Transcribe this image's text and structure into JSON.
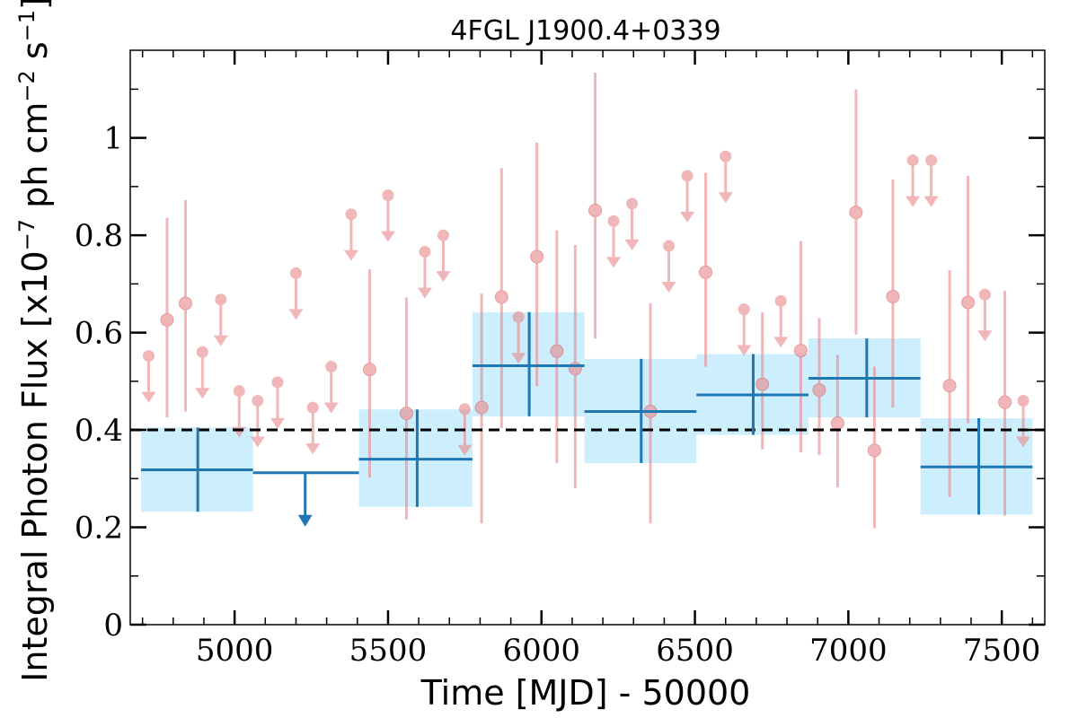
{
  "chart_data": {
    "type": "scatter",
    "title": "4FGL J1900.4+0339",
    "xlabel": "Time [MJD] - 50000",
    "ylabel_prefix": "Integral Photon Flux [x10",
    "ylabel_exp1": "−7",
    "ylabel_mid": " ph cm",
    "ylabel_exp2": "−2",
    "ylabel_mid2": " s",
    "ylabel_exp3": "−1",
    "ylabel_suffix": "]",
    "xlim": [
      4660,
      7640
    ],
    "ylim": [
      0,
      1.18
    ],
    "x_ticks": [
      {
        "value": 5000,
        "label": "5000"
      },
      {
        "value": 5500,
        "label": "5500"
      },
      {
        "value": 6000,
        "label": "6000"
      },
      {
        "value": 6500,
        "label": "6500"
      },
      {
        "value": 7000,
        "label": "7000"
      },
      {
        "value": 7500,
        "label": "7500"
      }
    ],
    "y_ticks": [
      {
        "value": 0,
        "label": "0"
      },
      {
        "value": 0.2,
        "label": "0.2"
      },
      {
        "value": 0.4,
        "label": "0.4"
      },
      {
        "value": 0.6,
        "label": "0.6"
      },
      {
        "value": 0.8,
        "label": "0.8"
      },
      {
        "value": 1.0,
        "label": "1"
      }
    ],
    "mean_flux": 0.4,
    "colors": {
      "short_bins": "#e8868a",
      "long_bins": "#1f77b4",
      "long_band": "#cdeefc",
      "mean_line": "#000000"
    },
    "long_bins": [
      {
        "x": 4880,
        "x_lo": 4695,
        "x_hi": 5060,
        "y": 0.318,
        "y_lo": 0.232,
        "y_hi": 0.405,
        "ul": false
      },
      {
        "x": 5230,
        "x_lo": 5060,
        "x_hi": 5405,
        "y": 0.312,
        "ul": true
      },
      {
        "x": 5595,
        "x_lo": 5405,
        "x_hi": 5775,
        "y": 0.34,
        "y_lo": 0.242,
        "y_hi": 0.442,
        "ul": false
      },
      {
        "x": 5960,
        "x_lo": 5775,
        "x_hi": 6140,
        "y": 0.532,
        "y_lo": 0.428,
        "y_hi": 0.642,
        "ul": false
      },
      {
        "x": 6325,
        "x_lo": 6140,
        "x_hi": 6505,
        "y": 0.438,
        "y_lo": 0.332,
        "y_hi": 0.546,
        "ul": false
      },
      {
        "x": 6690,
        "x_lo": 6505,
        "x_hi": 6870,
        "y": 0.472,
        "y_lo": 0.39,
        "y_hi": 0.556,
        "ul": false
      },
      {
        "x": 7060,
        "x_lo": 6870,
        "x_hi": 7235,
        "y": 0.506,
        "y_lo": 0.426,
        "y_hi": 0.588,
        "ul": false
      },
      {
        "x": 7425,
        "x_lo": 7235,
        "x_hi": 7600,
        "y": 0.324,
        "y_lo": 0.226,
        "y_hi": 0.424,
        "ul": false
      }
    ],
    "short_bins": [
      {
        "x": 4720,
        "y": 0.552,
        "ul": true
      },
      {
        "x": 4780,
        "y": 0.626,
        "y_lo": 0.426,
        "y_hi": 0.836,
        "ul": false
      },
      {
        "x": 4840,
        "y": 0.66,
        "y_lo": 0.438,
        "y_hi": 0.872,
        "ul": false
      },
      {
        "x": 4895,
        "y": 0.56,
        "ul": true
      },
      {
        "x": 4955,
        "y": 0.668,
        "ul": true
      },
      {
        "x": 5015,
        "y": 0.48,
        "ul": true
      },
      {
        "x": 5075,
        "y": 0.46,
        "ul": true
      },
      {
        "x": 5140,
        "y": 0.498,
        "ul": true
      },
      {
        "x": 5200,
        "y": 0.722,
        "ul": true
      },
      {
        "x": 5255,
        "y": 0.446,
        "ul": true
      },
      {
        "x": 5315,
        "y": 0.53,
        "ul": true
      },
      {
        "x": 5380,
        "y": 0.843,
        "ul": true
      },
      {
        "x": 5440,
        "y": 0.524,
        "y_lo": 0.302,
        "y_hi": 0.73,
        "ul": false
      },
      {
        "x": 5500,
        "y": 0.882,
        "ul": true
      },
      {
        "x": 5560,
        "y": 0.434,
        "y_lo": 0.216,
        "y_hi": 0.672,
        "ul": false
      },
      {
        "x": 5620,
        "y": 0.766,
        "ul": true
      },
      {
        "x": 5680,
        "y": 0.8,
        "ul": true
      },
      {
        "x": 5750,
        "y": 0.443,
        "ul": true
      },
      {
        "x": 5805,
        "y": 0.446,
        "y_lo": 0.208,
        "y_hi": 0.68,
        "ul": false
      },
      {
        "x": 5870,
        "y": 0.673,
        "y_lo": 0.404,
        "y_hi": 0.938,
        "ul": false
      },
      {
        "x": 5925,
        "y": 0.632,
        "ul": true
      },
      {
        "x": 5985,
        "y": 0.756,
        "y_lo": 0.49,
        "y_hi": 0.99,
        "ul": false
      },
      {
        "x": 6050,
        "y": 0.562,
        "y_lo": 0.332,
        "y_hi": 0.81,
        "ul": false
      },
      {
        "x": 6110,
        "y": 0.526,
        "y_lo": 0.28,
        "y_hi": 0.78,
        "ul": false
      },
      {
        "x": 6175,
        "y": 0.851,
        "y_lo": 0.588,
        "y_hi": 1.134,
        "ul": false
      },
      {
        "x": 6235,
        "y": 0.829,
        "ul": true
      },
      {
        "x": 6295,
        "y": 0.865,
        "ul": true
      },
      {
        "x": 6355,
        "y": 0.438,
        "y_lo": 0.208,
        "y_hi": 0.66,
        "ul": false
      },
      {
        "x": 6415,
        "y": 0.778,
        "ul": true
      },
      {
        "x": 6475,
        "y": 0.922,
        "ul": true
      },
      {
        "x": 6535,
        "y": 0.724,
        "y_lo": 0.53,
        "y_hi": 0.928,
        "ul": false
      },
      {
        "x": 6600,
        "y": 0.962,
        "ul": true
      },
      {
        "x": 6660,
        "y": 0.648,
        "ul": true
      },
      {
        "x": 6720,
        "y": 0.494,
        "y_lo": 0.36,
        "y_hi": 0.642,
        "ul": false
      },
      {
        "x": 6780,
        "y": 0.665,
        "ul": true
      },
      {
        "x": 6845,
        "y": 0.563,
        "y_lo": 0.354,
        "y_hi": 0.788,
        "ul": false
      },
      {
        "x": 6905,
        "y": 0.482,
        "y_lo": 0.348,
        "y_hi": 0.63,
        "ul": false
      },
      {
        "x": 6965,
        "y": 0.414,
        "y_lo": 0.282,
        "y_hi": 0.554,
        "ul": false
      },
      {
        "x": 7025,
        "y": 0.847,
        "y_lo": 0.596,
        "y_hi": 1.1,
        "ul": false
      },
      {
        "x": 7085,
        "y": 0.358,
        "y_lo": 0.198,
        "y_hi": 0.53,
        "ul": false
      },
      {
        "x": 7145,
        "y": 0.674,
        "y_lo": 0.446,
        "y_hi": 0.914,
        "ul": false
      },
      {
        "x": 7210,
        "y": 0.954,
        "ul": true
      },
      {
        "x": 7270,
        "y": 0.954,
        "ul": true
      },
      {
        "x": 7330,
        "y": 0.491,
        "y_lo": 0.262,
        "y_hi": 0.728,
        "ul": false
      },
      {
        "x": 7390,
        "y": 0.662,
        "y_lo": 0.414,
        "y_hi": 0.922,
        "ul": false
      },
      {
        "x": 7445,
        "y": 0.678,
        "ul": true
      },
      {
        "x": 7510,
        "y": 0.457,
        "y_lo": 0.224,
        "y_hi": 0.686,
        "ul": false
      },
      {
        "x": 7570,
        "y": 0.46,
        "ul": true
      }
    ]
  }
}
